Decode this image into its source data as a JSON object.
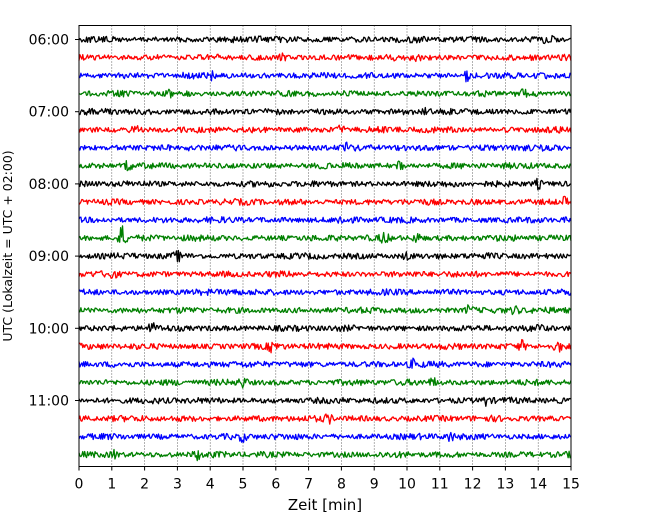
{
  "chart_data": {
    "type": "line",
    "subtype": "helicorder-seismogram",
    "xlabel": "Zeit  [min]",
    "ylabel": "UTC (Lokalzeit = UTC + 02:00)",
    "xlim": [
      0,
      15
    ],
    "x_ticks": [
      0,
      1,
      2,
      3,
      4,
      5,
      6,
      7,
      8,
      9,
      10,
      11,
      12,
      13,
      14,
      15
    ],
    "x_grid": true,
    "x_grid_style": "dotted",
    "y_tick_labels": [
      "06:00",
      "07:00",
      "08:00",
      "09:00",
      "10:00",
      "11:00"
    ],
    "trace_interval_minutes": 15,
    "traces_per_hour": 4,
    "trace_colors": [
      "#000000",
      "#ff0000",
      "#0000ff",
      "#008000"
    ],
    "traces": [
      {
        "start": "06:00",
        "color": "#000000",
        "events": [
          {
            "t": 14.3,
            "amp": 1.9
          },
          {
            "t": 5.5,
            "amp": 1.2
          }
        ]
      },
      {
        "start": "06:15",
        "color": "#ff0000",
        "events": [
          {
            "t": 6.2,
            "amp": 1.2
          },
          {
            "t": 10.3,
            "amp": 1.2
          }
        ]
      },
      {
        "start": "06:30",
        "color": "#0000ff",
        "events": [
          {
            "t": 11.8,
            "amp": 1.7
          },
          {
            "t": 4.0,
            "amp": 1.2
          }
        ]
      },
      {
        "start": "06:45",
        "color": "#008000",
        "events": [
          {
            "t": 13.6,
            "amp": 1.8
          },
          {
            "t": 2.8,
            "amp": 1.3
          }
        ]
      },
      {
        "start": "07:00",
        "color": "#000000",
        "events": [
          {
            "t": 10.6,
            "amp": 1.3
          }
        ]
      },
      {
        "start": "07:15",
        "color": "#ff0000",
        "events": [
          {
            "t": 1.7,
            "amp": 1.5
          },
          {
            "t": 8.0,
            "amp": 1.3
          }
        ]
      },
      {
        "start": "07:30",
        "color": "#0000ff",
        "events": [
          {
            "t": 8.2,
            "amp": 1.2
          }
        ]
      },
      {
        "start": "07:45",
        "color": "#008000",
        "events": [
          {
            "t": 1.5,
            "amp": 1.6
          },
          {
            "t": 9.8,
            "amp": 1.3
          }
        ]
      },
      {
        "start": "08:00",
        "color": "#000000",
        "events": [
          {
            "t": 14.0,
            "amp": 1.4
          }
        ]
      },
      {
        "start": "08:15",
        "color": "#ff0000",
        "events": [
          {
            "t": 14.8,
            "amp": 1.2
          }
        ]
      },
      {
        "start": "08:30",
        "color": "#0000ff",
        "events": [
          {
            "t": 8.0,
            "amp": 1.3
          }
        ]
      },
      {
        "start": "08:45",
        "color": "#008000",
        "events": [
          {
            "t": 1.3,
            "amp": 4.0
          },
          {
            "t": 9.3,
            "amp": 1.8
          },
          {
            "t": 10.3,
            "amp": 1.5
          }
        ]
      },
      {
        "start": "09:00",
        "color": "#000000",
        "events": [
          {
            "t": 3.0,
            "amp": 1.3
          },
          {
            "t": 10.0,
            "amp": 1.2
          }
        ]
      },
      {
        "start": "09:15",
        "color": "#ff0000",
        "events": [
          {
            "t": 1.0,
            "amp": 1.3
          }
        ]
      },
      {
        "start": "09:30",
        "color": "#0000ff",
        "events": [
          {
            "t": 4.7,
            "amp": 1.3
          }
        ]
      },
      {
        "start": "09:45",
        "color": "#008000",
        "events": [
          {
            "t": 11.9,
            "amp": 1.5
          },
          {
            "t": 13.3,
            "amp": 1.4
          }
        ]
      },
      {
        "start": "10:00",
        "color": "#000000",
        "events": [
          {
            "t": 2.2,
            "amp": 1.6
          },
          {
            "t": 14.0,
            "amp": 1.4
          }
        ]
      },
      {
        "start": "10:15",
        "color": "#ff0000",
        "events": [
          {
            "t": 5.9,
            "amp": 1.7
          },
          {
            "t": 13.5,
            "amp": 1.6
          },
          {
            "t": 14.6,
            "amp": 1.9
          }
        ]
      },
      {
        "start": "10:30",
        "color": "#0000ff",
        "events": [
          {
            "t": 10.2,
            "amp": 1.3
          }
        ]
      },
      {
        "start": "10:45",
        "color": "#008000",
        "events": [
          {
            "t": 5.0,
            "amp": 1.4
          },
          {
            "t": 10.8,
            "amp": 1.3
          }
        ]
      },
      {
        "start": "11:00",
        "color": "#000000",
        "events": [
          {
            "t": 12.4,
            "amp": 1.4
          }
        ]
      },
      {
        "start": "11:15",
        "color": "#ff0000",
        "events": [
          {
            "t": 7.6,
            "amp": 1.3
          }
        ]
      },
      {
        "start": "11:30",
        "color": "#0000ff",
        "events": [
          {
            "t": 11.3,
            "amp": 1.5
          },
          {
            "t": 5.0,
            "amp": 1.2
          }
        ]
      },
      {
        "start": "11:45",
        "color": "#008000",
        "events": [
          {
            "t": 3.6,
            "amp": 1.3
          },
          {
            "t": 1.1,
            "amp": 1.2
          }
        ]
      }
    ]
  }
}
